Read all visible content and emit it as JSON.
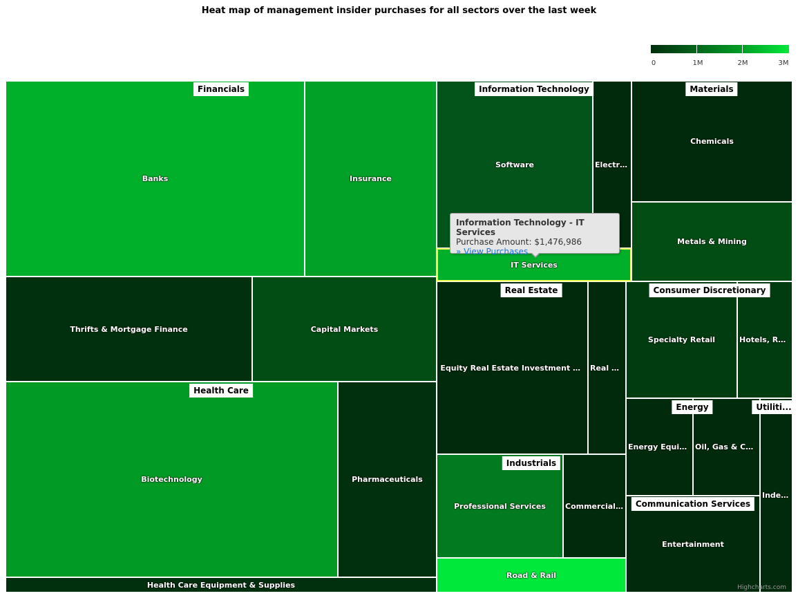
{
  "chart_data": {
    "type": "heatmap",
    "subtype": "treemap",
    "title": "Heat map of management insider purchases for all sectors over the last week",
    "color_axis": {
      "min": 0,
      "max": 3000000,
      "tick_labels": [
        "0",
        "1M",
        "2M",
        "3M"
      ],
      "colors": [
        "#002e0d",
        "#009e26",
        "#00e83a"
      ]
    },
    "sectors": [
      {
        "name": "Financials",
        "industries": [
          {
            "name": "Banks",
            "color": "#00b02a"
          },
          {
            "name": "Insurance",
            "color": "#00a126"
          },
          {
            "name": "Thrifts & Mortgage Finance",
            "color": "#01300e"
          },
          {
            "name": "Capital Markets",
            "color": "#024d14"
          }
        ]
      },
      {
        "name": "Health Care",
        "industries": [
          {
            "name": "Biotechnology",
            "color": "#009a24"
          },
          {
            "name": "Pharmaceuticals",
            "color": "#01300e"
          },
          {
            "name": "Health Care Equipment & Supplies",
            "color": "#01300e"
          }
        ]
      },
      {
        "name": "Information Technology",
        "industries": [
          {
            "name": "Software",
            "color": "#02541a"
          },
          {
            "name": "Electronic Equipment",
            "label": "Electro...",
            "color": "#012a0c"
          },
          {
            "name": "IT Services",
            "color": "#00b02a",
            "purchase_amount": "$1,476,986"
          }
        ]
      },
      {
        "name": "Materials",
        "industries": [
          {
            "name": "Chemicals",
            "color": "#012a0c"
          },
          {
            "name": "Metals & Mining",
            "color": "#024d14"
          }
        ]
      },
      {
        "name": "Real Estate",
        "industries": [
          {
            "name": "Equity Real Estate Investment Trusts",
            "color": "#012a0c"
          },
          {
            "name": "Real Estate Management & Development",
            "label": "Real Es...",
            "color": "#012a0c"
          }
        ]
      },
      {
        "name": "Consumer Discretionary",
        "industries": [
          {
            "name": "Specialty Retail",
            "color": "#013b10"
          },
          {
            "name": "Hotels, Restaurants & Leisure",
            "label": "Hotels, Rest...",
            "color": "#013b10"
          }
        ]
      },
      {
        "name": "Energy",
        "industries": [
          {
            "name": "Energy Equipment & Services",
            "label": "Energy Equipm...",
            "color": "#012a0c"
          },
          {
            "name": "Oil, Gas & Consumable Fuels",
            "label": "Oil, Gas & Con...",
            "color": "#012a0c"
          }
        ]
      },
      {
        "name": "Utilities",
        "label": "Utiliti...",
        "industries": [
          {
            "name": "Independent Power Producers",
            "label": "Indep...",
            "color": "#012a0c"
          }
        ]
      },
      {
        "name": "Communication Services",
        "industries": [
          {
            "name": "Entertainment",
            "color": "#012a0c"
          }
        ]
      },
      {
        "name": "Industrials",
        "industries": [
          {
            "name": "Professional Services",
            "color": "#027a1f"
          },
          {
            "name": "Commercial Services & Supplies",
            "label": "Commercial S...",
            "color": "#012a0c"
          },
          {
            "name": "Road & Rail",
            "color": "#00e83a"
          }
        ]
      }
    ],
    "tooltip": {
      "title": "Information Technology - IT Services",
      "line": "Purchase Amount: $1,476,986",
      "link": "» View Purchases"
    },
    "highlighted": "IT Services",
    "credits": "Highcharts.com"
  }
}
